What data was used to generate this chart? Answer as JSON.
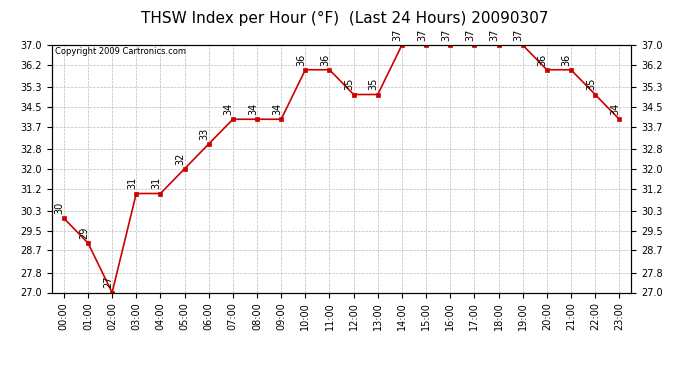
{
  "title": "THSW Index per Hour (°F)  (Last 24 Hours) 20090307",
  "copyright": "Copyright 2009 Cartronics.com",
  "hours": [
    "00:00",
    "01:00",
    "02:00",
    "03:00",
    "04:00",
    "05:00",
    "06:00",
    "07:00",
    "08:00",
    "09:00",
    "10:00",
    "11:00",
    "12:00",
    "13:00",
    "14:00",
    "15:00",
    "16:00",
    "17:00",
    "18:00",
    "19:00",
    "20:00",
    "21:00",
    "22:00",
    "23:00"
  ],
  "values": [
    30,
    29,
    27,
    31,
    31,
    32,
    33,
    34,
    34,
    34,
    36,
    36,
    35,
    35,
    37,
    37,
    37,
    37,
    37,
    37,
    36,
    36,
    35,
    34
  ],
  "ylim_min": 27.0,
  "ylim_max": 37.0,
  "yticks": [
    27.0,
    27.8,
    28.7,
    29.5,
    30.3,
    31.2,
    32.0,
    32.8,
    33.7,
    34.5,
    35.3,
    36.2,
    37.0
  ],
  "ytick_labels": [
    "27.0",
    "27.8",
    "28.7",
    "29.5",
    "30.3",
    "31.2",
    "32.0",
    "32.8",
    "33.7",
    "34.5",
    "35.3",
    "36.2",
    "37.0"
  ],
  "line_color": "#cc0000",
  "marker_color": "#cc0000",
  "bg_color": "#ffffff",
  "grid_color": "#bbbbbb",
  "title_fontsize": 11,
  "label_fontsize": 7,
  "annot_fontsize": 7,
  "copyright_fontsize": 6
}
